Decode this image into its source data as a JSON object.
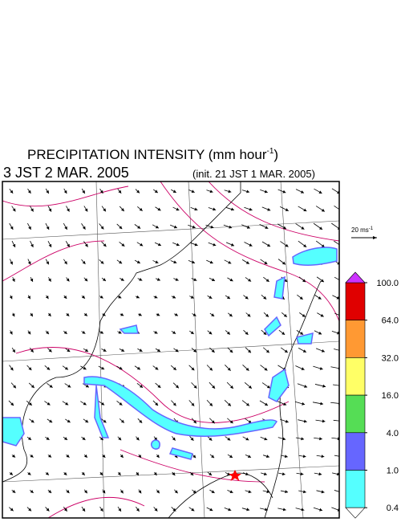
{
  "header": {
    "title": {
      "text": "PRECIPITATION INTENSITY (mm hour",
      "sup": "-1",
      "end": ")"
    },
    "time": "3 JST 2 MAR. 2005",
    "init": "(init. 21 JST 1 MAR. 2005)"
  },
  "wind_scale": {
    "text": "20 ms",
    "sup": "-1"
  },
  "colorbar": {
    "levels": [
      {
        "value": 100,
        "label": "100.0"
      },
      {
        "value": 64,
        "label": "64.0"
      },
      {
        "value": 32,
        "label": "32.0"
      },
      {
        "value": 16,
        "label": "16.0"
      },
      {
        "value": 4,
        "label": "4.0"
      },
      {
        "value": 1,
        "label": "1.0"
      },
      {
        "value": 0.4,
        "label": "0.4"
      }
    ],
    "colors": [
      "#e00000",
      "#ff9933",
      "#ffff66",
      "#55dd55",
      "#6666ff",
      "#55ffff"
    ],
    "over_color": "#cc33ff",
    "under_color": "#ffffff"
  }
}
